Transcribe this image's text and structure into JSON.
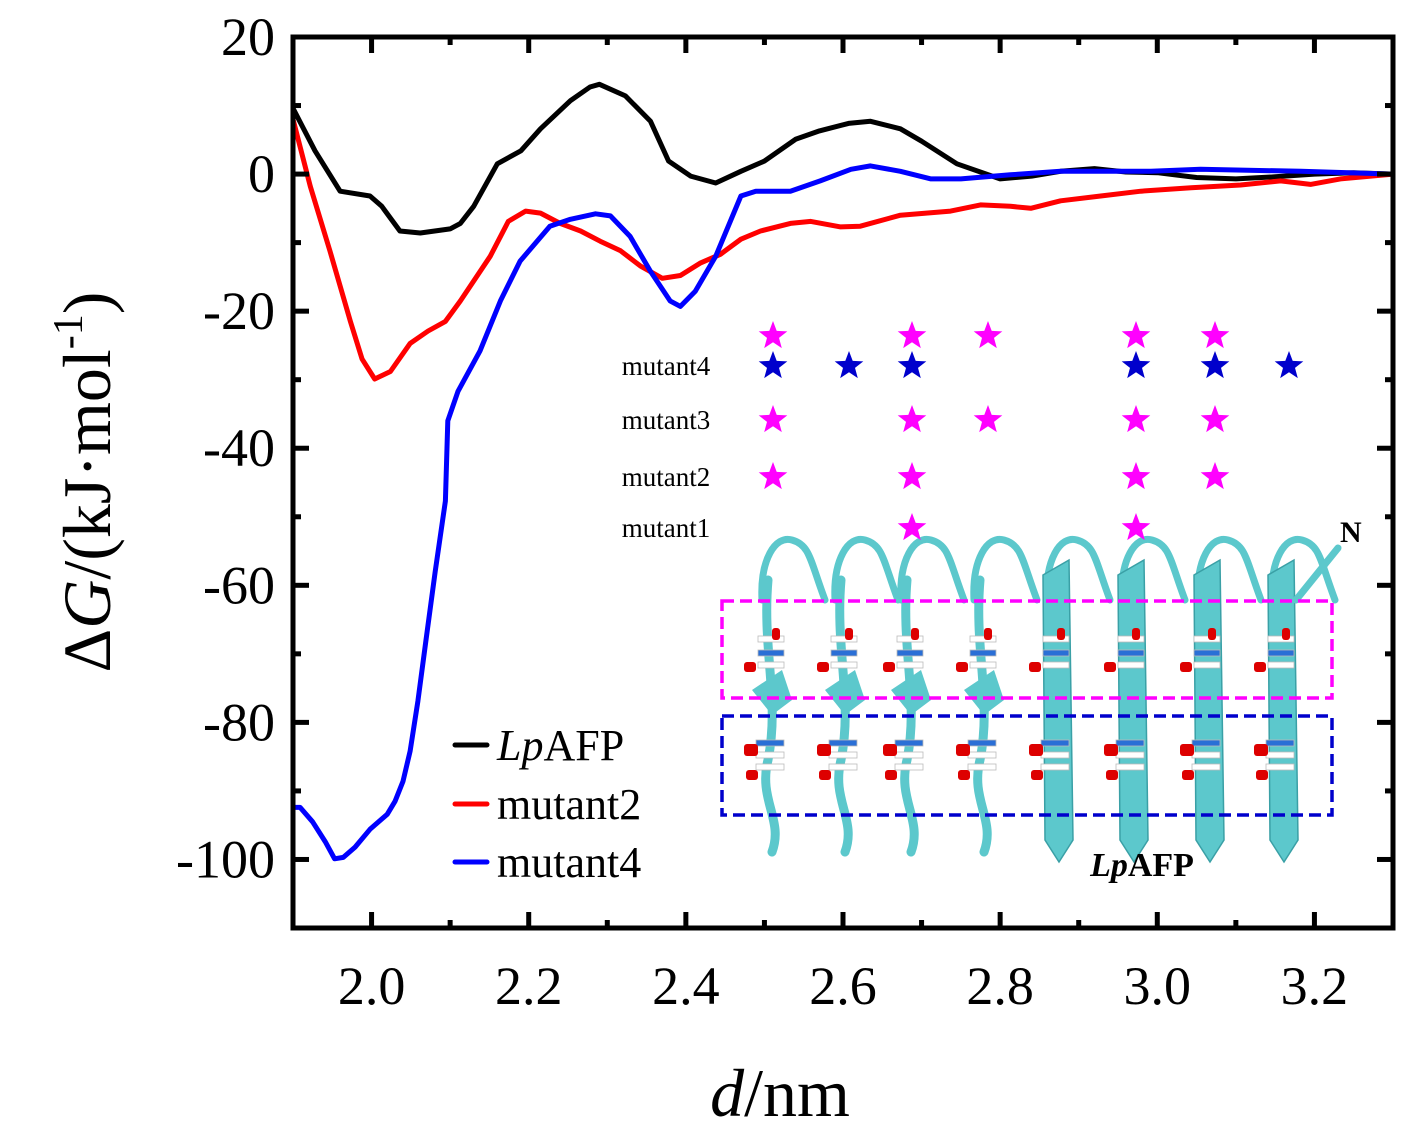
{
  "chart_data": {
    "type": "line",
    "title": "",
    "xlabel": {
      "italic": "d",
      "rest": "/nm"
    },
    "ylabel": {
      "prefix": "Δ",
      "italic": "G",
      "rest": "/(kJ·mol",
      "sup": "-1",
      "close": ")"
    },
    "xlim": [
      1.9,
      3.3
    ],
    "ylim": [
      -110,
      20
    ],
    "xticks": [
      2.0,
      2.2,
      2.4,
      2.6,
      2.8,
      3.0,
      3.2
    ],
    "xtick_labels": [
      "2.0",
      "2.2",
      "2.4",
      "2.6",
      "2.8",
      "3.0",
      "3.2"
    ],
    "xminor": [
      1.9,
      2.1,
      2.3,
      2.5,
      2.7,
      2.9,
      3.1,
      3.3
    ],
    "yticks": [
      20,
      0,
      -20,
      -40,
      -60,
      -80,
      -100
    ],
    "ytick_labels": [
      "20",
      "0",
      "-20",
      "-40",
      "-60",
      "-80",
      "-100"
    ],
    "yminor": [
      10,
      -10,
      -30,
      -50,
      -70,
      -90
    ],
    "grid": false,
    "legend_position": "bottom-left",
    "series": [
      {
        "name": "LpAFP",
        "name_italic": "Lp",
        "name_rest": "AFP",
        "color": "#000000",
        "x": [
          1.9,
          1.928,
          1.96,
          1.998,
          2.013,
          2.036,
          2.062,
          2.1,
          2.113,
          2.13,
          2.16,
          2.19,
          2.215,
          2.253,
          2.278,
          2.29,
          2.323,
          2.355,
          2.378,
          2.406,
          2.438,
          2.47,
          2.5,
          2.54,
          2.57,
          2.607,
          2.635,
          2.673,
          2.7,
          2.745,
          2.8,
          2.84,
          2.877,
          2.92,
          2.96,
          3.0,
          3.05,
          3.1,
          3.15,
          3.2,
          3.25,
          3.3
        ],
        "y": [
          9.6,
          3.4,
          -2.5,
          -3.2,
          -4.7,
          -8.3,
          -8.6,
          -8.0,
          -7.2,
          -4.7,
          1.5,
          3.4,
          6.6,
          10.7,
          12.7,
          13.1,
          11.4,
          7.7,
          1.9,
          -0.3,
          -1.3,
          0.4,
          1.9,
          5.1,
          6.3,
          7.4,
          7.7,
          6.6,
          4.8,
          1.5,
          -0.7,
          -0.3,
          0.4,
          0.8,
          0.3,
          0.2,
          -0.5,
          -0.7,
          -0.4,
          0.0,
          0.2,
          0.0
        ]
      },
      {
        "name": "mutant2",
        "color": "#ff0000",
        "x": [
          1.9,
          1.922,
          1.947,
          1.973,
          1.988,
          2.004,
          2.024,
          2.049,
          2.072,
          2.094,
          2.113,
          2.151,
          2.174,
          2.196,
          2.215,
          2.24,
          2.266,
          2.291,
          2.317,
          2.342,
          2.37,
          2.393,
          2.418,
          2.444,
          2.47,
          2.495,
          2.533,
          2.559,
          2.597,
          2.622,
          2.673,
          2.737,
          2.775,
          2.813,
          2.839,
          2.877,
          2.928,
          2.979,
          3.043,
          3.106,
          3.157,
          3.195,
          3.233,
          3.3
        ],
        "y": [
          8.0,
          -1.8,
          -11.2,
          -21.5,
          -27.0,
          -29.9,
          -28.8,
          -24.7,
          -22.9,
          -21.5,
          -18.5,
          -12.0,
          -6.9,
          -5.4,
          -5.7,
          -7.2,
          -8.3,
          -9.8,
          -11.2,
          -13.4,
          -15.2,
          -14.8,
          -13.0,
          -11.7,
          -9.5,
          -8.3,
          -7.2,
          -6.9,
          -7.7,
          -7.6,
          -6.0,
          -5.4,
          -4.5,
          -4.7,
          -5.0,
          -3.9,
          -3.2,
          -2.5,
          -2.0,
          -1.6,
          -1.0,
          -1.5,
          -0.7,
          0.0
        ]
      },
      {
        "name": "mutant4",
        "color": "#0000ff",
        "x": [
          1.9,
          1.909,
          1.925,
          1.941,
          1.953,
          1.964,
          1.979,
          1.998,
          2.02,
          2.03,
          2.04,
          2.049,
          2.059,
          2.069,
          2.081,
          2.094,
          2.097,
          2.11,
          2.138,
          2.164,
          2.189,
          2.227,
          2.253,
          2.285,
          2.304,
          2.329,
          2.355,
          2.38,
          2.393,
          2.412,
          2.438,
          2.47,
          2.489,
          2.533,
          2.571,
          2.61,
          2.635,
          2.673,
          2.712,
          2.75,
          2.813,
          2.877,
          2.992,
          3.055,
          3.183,
          3.3
        ],
        "y": [
          -92.4,
          -92.4,
          -94.5,
          -97.4,
          -99.9,
          -99.7,
          -98.2,
          -95.6,
          -93.4,
          -91.5,
          -88.6,
          -84.2,
          -76.9,
          -68.2,
          -58.0,
          -47.7,
          -36.0,
          -31.7,
          -25.8,
          -18.5,
          -12.7,
          -7.6,
          -6.6,
          -5.8,
          -6.1,
          -9.1,
          -14.2,
          -18.5,
          -19.3,
          -17.1,
          -12.0,
          -3.2,
          -2.5,
          -2.5,
          -1.0,
          0.7,
          1.2,
          0.4,
          -0.7,
          -0.7,
          -0.1,
          0.4,
          0.4,
          0.7,
          0.4,
          0.0
        ]
      }
    ],
    "inset": {
      "rows": [
        {
          "label": "mutant4",
          "stars": [
            {
              "col": 0,
              "color": "#ff00ff",
              "level": "upper"
            },
            {
              "col": 2,
              "color": "#ff00ff",
              "level": "upper"
            },
            {
              "col": 3,
              "color": "#ff00ff",
              "level": "upper"
            },
            {
              "col": 4,
              "color": "#ff00ff",
              "level": "upper"
            },
            {
              "col": 5,
              "color": "#ff00ff",
              "level": "upper"
            },
            {
              "col": 0,
              "color": "#0000cc",
              "level": "main"
            },
            {
              "col": 1,
              "color": "#0000cc",
              "level": "main"
            },
            {
              "col": 2,
              "color": "#0000cc",
              "level": "main"
            },
            {
              "col": 4,
              "color": "#0000cc",
              "level": "main"
            },
            {
              "col": 5,
              "color": "#0000cc",
              "level": "main"
            },
            {
              "col": 6,
              "color": "#0000cc",
              "level": "main"
            }
          ]
        },
        {
          "label": "mutant3",
          "stars": [
            {
              "col": 0,
              "color": "#ff00ff",
              "level": "main"
            },
            {
              "col": 2,
              "color": "#ff00ff",
              "level": "main"
            },
            {
              "col": 3,
              "color": "#ff00ff",
              "level": "main"
            },
            {
              "col": 4,
              "color": "#ff00ff",
              "level": "main"
            },
            {
              "col": 5,
              "color": "#ff00ff",
              "level": "main"
            }
          ]
        },
        {
          "label": "mutant2",
          "stars": [
            {
              "col": 0,
              "color": "#ff00ff",
              "level": "main"
            },
            {
              "col": 2,
              "color": "#ff00ff",
              "level": "main"
            },
            {
              "col": 4,
              "color": "#ff00ff",
              "level": "main"
            },
            {
              "col": 5,
              "color": "#ff00ff",
              "level": "main"
            }
          ]
        },
        {
          "label": "mutant1",
          "stars": [
            {
              "col": 2,
              "color": "#ff00ff",
              "level": "main"
            },
            {
              "col": 4,
              "color": "#ff00ff",
              "level": "main"
            }
          ]
        }
      ],
      "protein_label_italic": "Lp",
      "protein_label_rest": "AFP",
      "terminus_label": "N",
      "box_colors": {
        "upper": "#ff00ff",
        "lower": "#0000cc"
      },
      "ribbon_color": "#5cc8cc",
      "coil_count": 8
    }
  }
}
